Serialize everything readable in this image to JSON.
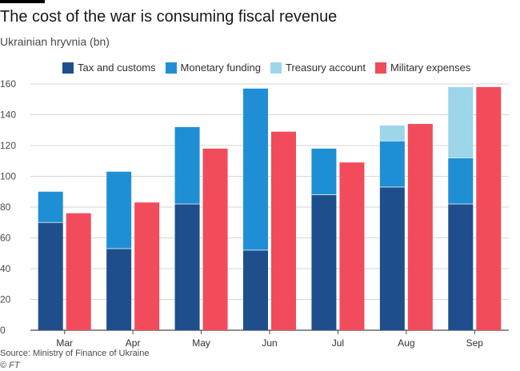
{
  "header": {
    "title": "The cost of the war is consuming fiscal revenue",
    "subtitle": "Ukrainian hryvnia (bn)"
  },
  "footer": {
    "source": "Source: Ministry of Finance of Ukraine",
    "credit": "© FT"
  },
  "chart_data": {
    "type": "bar",
    "categories": [
      "Mar",
      "Apr",
      "May",
      "Jun",
      "Jul",
      "Aug",
      "Sep"
    ],
    "ylim": [
      0,
      160
    ],
    "yticks": [
      0,
      20,
      40,
      60,
      80,
      100,
      120,
      140,
      160
    ],
    "grid": true,
    "legend_position": "top",
    "stacked_series": [
      {
        "name": "Tax and customs",
        "color": "#1f4e8c",
        "values": [
          70,
          53,
          82,
          52,
          88,
          93,
          82
        ]
      },
      {
        "name": "Monetary funding",
        "color": "#1e8fd5",
        "values": [
          20,
          50,
          50,
          105,
          30,
          30,
          30
        ]
      },
      {
        "name": "Treasury account",
        "color": "#9dd5ea",
        "values": [
          0,
          0,
          0,
          0,
          0,
          10,
          46
        ]
      }
    ],
    "side_series": [
      {
        "name": "Military expenses",
        "color": "#f24b5b",
        "values": [
          76,
          83,
          118,
          129,
          109,
          134,
          158
        ]
      }
    ]
  }
}
